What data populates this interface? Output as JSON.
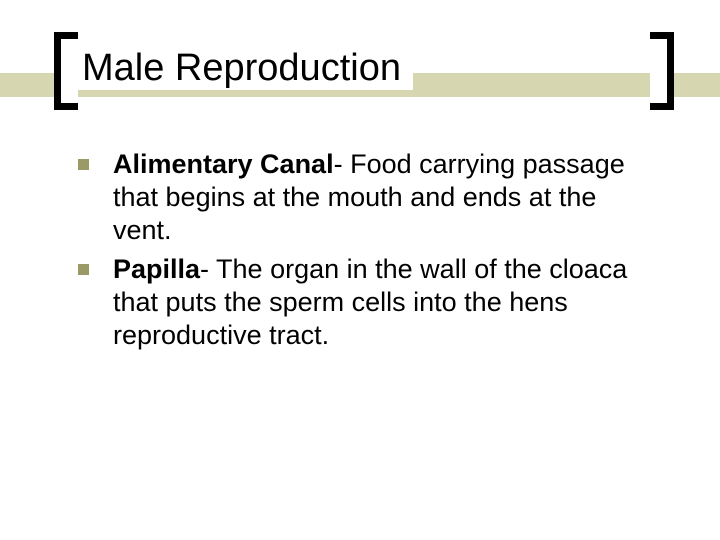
{
  "slide": {
    "title": "Male Reproduction",
    "stripe_color": "#d6d6b0",
    "bullet_color": "#9a9a66",
    "items": [
      {
        "term": "Alimentary Canal",
        "definition": "- Food carrying passage that begins at the mouth and ends at the vent."
      },
      {
        "term": "Papilla",
        "definition": "- The organ in the wall of the cloaca that puts the sperm cells into the hens reproductive tract."
      }
    ]
  }
}
